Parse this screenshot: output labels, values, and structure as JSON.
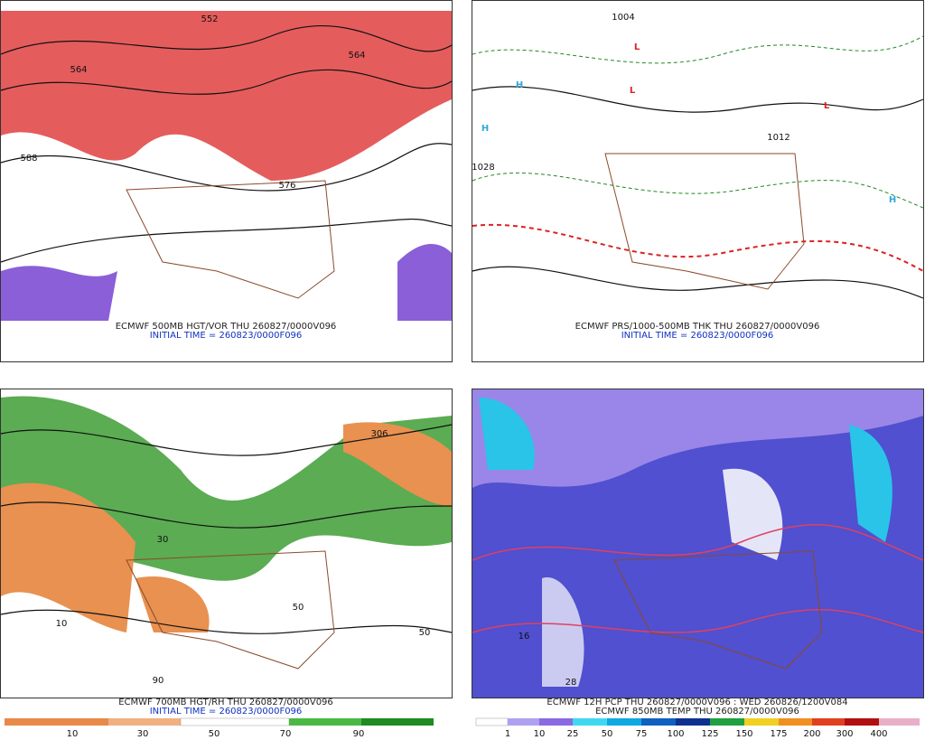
{
  "panels": [
    {
      "caption": "ECMWF 500MB HGT/VOR THU 260827/0000V096",
      "init": "INITIAL TIME = 260823/0000F096",
      "labels": [
        "564",
        "588",
        "576",
        "552",
        "564"
      ]
    },
    {
      "caption": "ECMWF PRS/1000-500MB THK THU 260827/0000V096",
      "init": "INITIAL TIME = 260823/0000F096",
      "labels": [
        "H",
        "H",
        "L",
        "L",
        "L",
        "H",
        "1012",
        "1028",
        "1004"
      ]
    },
    {
      "caption": "ECMWF 700MB HGT/RH THU 260827/0000V096",
      "init": "INITIAL TIME = 260823/0000F096",
      "labels": [
        "306",
        "30",
        "50",
        "10",
        "90",
        "50"
      ],
      "colorbar": [
        10,
        30,
        50,
        70,
        90
      ]
    },
    {
      "caption": "ECMWF 12H PCP THU 260827/0000V096 : WED 260826/1200V084",
      "init": "ECMWF 850MB TEMP THU 260827/0000V096",
      "labels": [
        "28",
        "16"
      ],
      "colorbar": [
        1,
        10,
        25,
        50,
        75,
        100,
        125,
        150,
        175,
        200,
        300,
        400
      ]
    }
  ]
}
